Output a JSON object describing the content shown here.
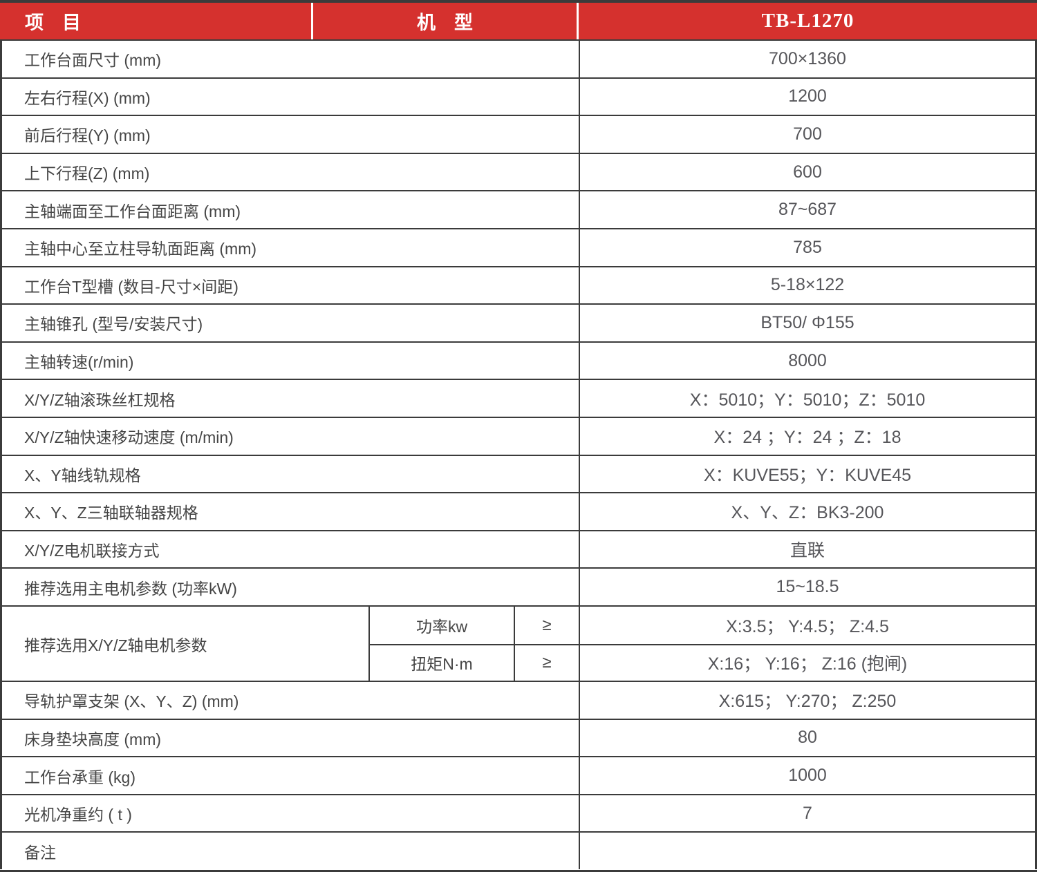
{
  "header": {
    "item": "项　目",
    "model": "机　型",
    "model_value": "TB-L1270"
  },
  "rows": [
    {
      "label": "工作台面尺寸 (mm)",
      "value": "700×1360"
    },
    {
      "label": "左右行程(X) (mm)",
      "value": "1200"
    },
    {
      "label": "前后行程(Y) (mm)",
      "value": "700"
    },
    {
      "label": "上下行程(Z) (mm)",
      "value": "600"
    },
    {
      "label": "主轴端面至工作台面距离 (mm)",
      "value": "87~687"
    },
    {
      "label": "主轴中心至立柱导轨面距离 (mm)",
      "value": "785"
    },
    {
      "label": "工作台T型槽 (数目-尺寸×间距)",
      "value": "5-18×122"
    },
    {
      "label": "主轴锥孔 (型号/安装尺寸)",
      "value": "BT50/ Φ155"
    },
    {
      "label": "主轴转速(r/min)",
      "value": "8000"
    },
    {
      "label": "X/Y/Z轴滚珠丝杠规格",
      "value": "X：5010；Y：5010；Z：5010"
    },
    {
      "label": "X/Y/Z轴快速移动速度 (m/min)",
      "value": "X：24 ；Y：24 ；Z：18"
    },
    {
      "label": "X、Y轴线轨规格",
      "value": "X：KUVE55；Y：KUVE45"
    },
    {
      "label": "X、Y、Z三轴联轴器规格",
      "value": "X、Y、Z：BK3-200"
    },
    {
      "label": "X/Y/Z电机联接方式",
      "value": "直联"
    },
    {
      "label": "推荐选用主电机参数 (功率kW)",
      "value": "15~18.5"
    }
  ],
  "motor_row": {
    "label": "推荐选用X/Y/Z轴电机参数",
    "sub_rows": [
      {
        "param": "功率kw",
        "operator": "≥",
        "value": "X:3.5； Y:4.5； Z:4.5"
      },
      {
        "param": "扭矩N·m",
        "operator": "≥",
        "value": "X:16； Y:16； Z:16 (抱闸)"
      }
    ]
  },
  "rows_after": [
    {
      "label": "导轨护罩支架 (X、Y、Z)  (mm)",
      "value": "X:615； Y:270； Z:250"
    },
    {
      "label": "床身垫块高度 (mm)",
      "value": "80"
    },
    {
      "label": "工作台承重 (kg)",
      "value": "1000"
    },
    {
      "label": "光机净重约 ( t )",
      "value": "7"
    },
    {
      "label": "备注",
      "value": ""
    }
  ],
  "colors": {
    "header_bg": "#d5312e",
    "header_text": "#ffffff",
    "border": "#3b3b3b",
    "label_text": "#454545",
    "value_text": "#56565a"
  }
}
